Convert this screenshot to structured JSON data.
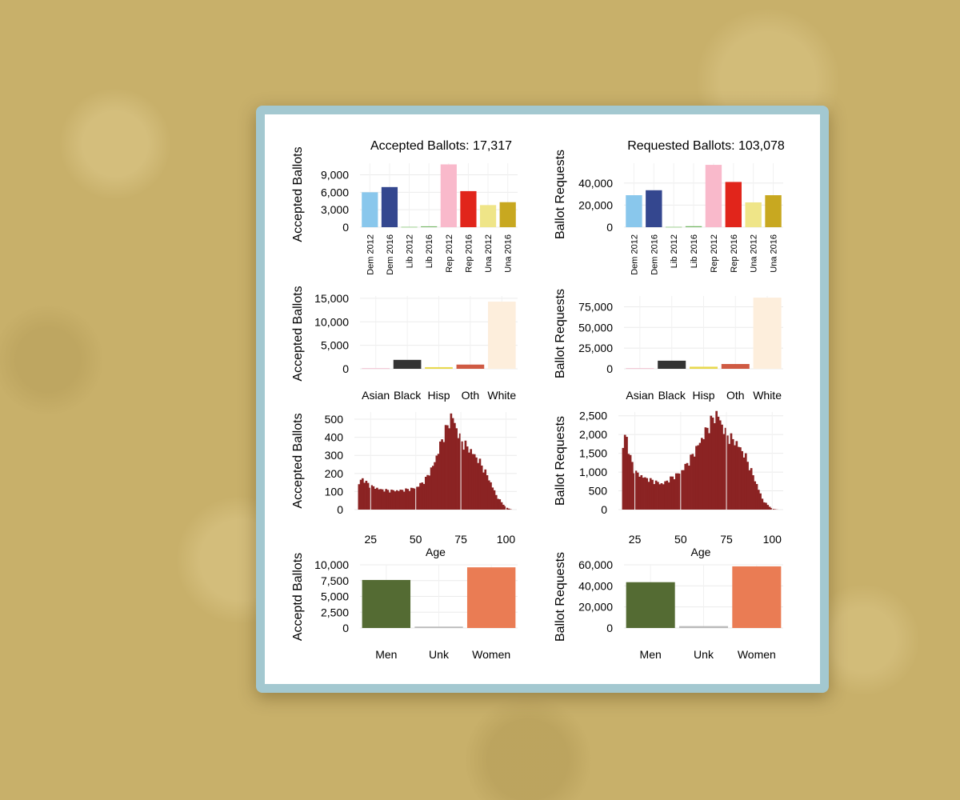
{
  "colors": {
    "background": "#c8b06a",
    "frame": "#a3c8d0",
    "age_bars": "#8b2323"
  },
  "chart_data": [
    {
      "id": "party_accepted",
      "type": "bar",
      "title": "Accepted Ballots:  17,317",
      "xlabel": "",
      "ylabel": "Accepted Ballots",
      "categories": [
        "Dem 2012",
        "Dem 2016",
        "Lib 2012",
        "Lib 2016",
        "Rep 2012",
        "Rep 2016",
        "Una 2012",
        "Una 2016"
      ],
      "values": [
        6000,
        6900,
        80,
        150,
        10800,
        6200,
        3800,
        4300
      ],
      "colors": [
        "#89c7ec",
        "#34478f",
        "#9ed08f",
        "#73b763",
        "#f9b9cb",
        "#e1251b",
        "#efe588",
        "#c8a820"
      ],
      "ylim": [
        0,
        11000
      ],
      "yticks": [
        0,
        3000,
        6000,
        9000
      ],
      "ytick_labels": [
        "0",
        "3,000",
        "6,000",
        "9,000"
      ],
      "rotate_xlabels": true,
      "grid": true
    },
    {
      "id": "party_requested",
      "type": "bar",
      "title": "Requested Ballots:  103,078",
      "xlabel": "",
      "ylabel": "Ballot Requests",
      "categories": [
        "Dem 2012",
        "Dem 2016",
        "Lib 2012",
        "Lib 2016",
        "Rep 2012",
        "Rep 2016",
        "Una 2012",
        "Una 2016"
      ],
      "values": [
        29000,
        33500,
        400,
        900,
        56500,
        41000,
        22500,
        29000
      ],
      "colors": [
        "#89c7ec",
        "#34478f",
        "#9ed08f",
        "#73b763",
        "#f9b9cb",
        "#e1251b",
        "#efe588",
        "#c8a820"
      ],
      "ylim": [
        0,
        58000
      ],
      "yticks": [
        0,
        20000,
        40000
      ],
      "ytick_labels": [
        "0",
        "20,000",
        "40,000"
      ],
      "rotate_xlabels": true,
      "grid": true
    },
    {
      "id": "race_accepted",
      "type": "bar",
      "title": "",
      "xlabel": "",
      "ylabel": "Accepted Ballots",
      "categories": [
        "Asian",
        "Black",
        "Hisp",
        "Oth",
        "White"
      ],
      "values": [
        150,
        1900,
        350,
        900,
        14300
      ],
      "colors": [
        "#f2c6d4",
        "#333333",
        "#e8d84e",
        "#cf5a43",
        "#fdeedc"
      ],
      "ylim": [
        0,
        15500
      ],
      "yticks": [
        0,
        5000,
        10000,
        15000
      ],
      "ytick_labels": [
        "0",
        "5,000",
        "10,000",
        "15,000"
      ],
      "rotate_xlabels": false,
      "grid": true
    },
    {
      "id": "race_requested",
      "type": "bar",
      "title": "",
      "xlabel": "",
      "ylabel": "Ballot Requests",
      "categories": [
        "Asian",
        "Black",
        "Hisp",
        "Oth",
        "White"
      ],
      "values": [
        900,
        9800,
        2500,
        5800,
        86000
      ],
      "colors": [
        "#f2c6d4",
        "#333333",
        "#e8d84e",
        "#cf5a43",
        "#fdeedc"
      ],
      "ylim": [
        0,
        88000
      ],
      "yticks": [
        0,
        25000,
        50000,
        75000
      ],
      "ytick_labels": [
        "0",
        "25,000",
        "50,000",
        "75,000"
      ],
      "rotate_xlabels": false,
      "grid": true
    },
    {
      "id": "age_accepted",
      "type": "area",
      "title": "",
      "xlabel": "Age",
      "ylabel": "Accepted Ballots",
      "x": [
        18,
        20,
        22,
        25,
        28,
        30,
        35,
        40,
        45,
        50,
        55,
        60,
        65,
        68,
        70,
        72,
        75,
        80,
        85,
        90,
        95,
        100,
        103
      ],
      "y": [
        130,
        175,
        155,
        130,
        120,
        112,
        105,
        105,
        110,
        120,
        160,
        250,
        400,
        470,
        525,
        460,
        380,
        330,
        270,
        180,
        70,
        12,
        0
      ],
      "color": "#8b2323",
      "xlim": [
        16,
        106
      ],
      "ylim": [
        0,
        540
      ],
      "xticks": [
        25,
        50,
        75,
        100
      ],
      "xtick_labels": [
        "25",
        "50",
        "75",
        "100"
      ],
      "yticks": [
        0,
        100,
        200,
        300,
        400,
        500
      ],
      "ytick_labels": [
        "0",
        "100",
        "200",
        "300",
        "400",
        "500"
      ],
      "grid": true
    },
    {
      "id": "age_requested",
      "type": "area",
      "title": "",
      "xlabel": "Age",
      "ylabel": "Ballot Requests",
      "x": [
        18,
        19,
        20,
        22,
        25,
        30,
        35,
        40,
        45,
        50,
        55,
        60,
        65,
        68,
        70,
        72,
        75,
        80,
        85,
        90,
        95,
        100,
        103
      ],
      "y": [
        1400,
        1900,
        2050,
        1450,
        1000,
        850,
        760,
        680,
        840,
        1000,
        1320,
        1750,
        2200,
        2450,
        2550,
        2300,
        1980,
        1800,
        1450,
        850,
        230,
        20,
        0
      ],
      "color": "#8b2323",
      "xlim": [
        16,
        106
      ],
      "ylim": [
        0,
        2600
      ],
      "xticks": [
        25,
        50,
        75,
        100
      ],
      "xtick_labels": [
        "25",
        "50",
        "75",
        "100"
      ],
      "yticks": [
        0,
        500,
        1000,
        1500,
        2000,
        2500
      ],
      "ytick_labels": [
        "0",
        "500",
        "1,000",
        "1,500",
        "2,000",
        "2,500"
      ],
      "grid": true
    },
    {
      "id": "sex_accepted",
      "type": "bar",
      "title": "",
      "xlabel": "",
      "ylabel": "Acceptd Ballots",
      "categories": [
        "Men",
        "Unk",
        "Women"
      ],
      "values": [
        7600,
        220,
        9600
      ],
      "colors": [
        "#546b33",
        "#bbbbbb",
        "#ea7c54"
      ],
      "ylim": [
        0,
        10000
      ],
      "yticks": [
        0,
        2500,
        5000,
        7500,
        10000
      ],
      "ytick_labels": [
        "0",
        "2,500",
        "5,000",
        "7,500",
        "10,000"
      ],
      "rotate_xlabels": false,
      "grid": true
    },
    {
      "id": "sex_requested",
      "type": "bar",
      "title": "",
      "xlabel": "",
      "ylabel": "Ballot Requests",
      "categories": [
        "Men",
        "Unk",
        "Women"
      ],
      "values": [
        43500,
        1800,
        58500
      ],
      "colors": [
        "#546b33",
        "#bbbbbb",
        "#ea7c54"
      ],
      "ylim": [
        0,
        60000
      ],
      "yticks": [
        0,
        20000,
        40000,
        60000
      ],
      "ytick_labels": [
        "0",
        "20,000",
        "40,000",
        "60,000"
      ],
      "rotate_xlabels": false,
      "grid": true
    }
  ]
}
